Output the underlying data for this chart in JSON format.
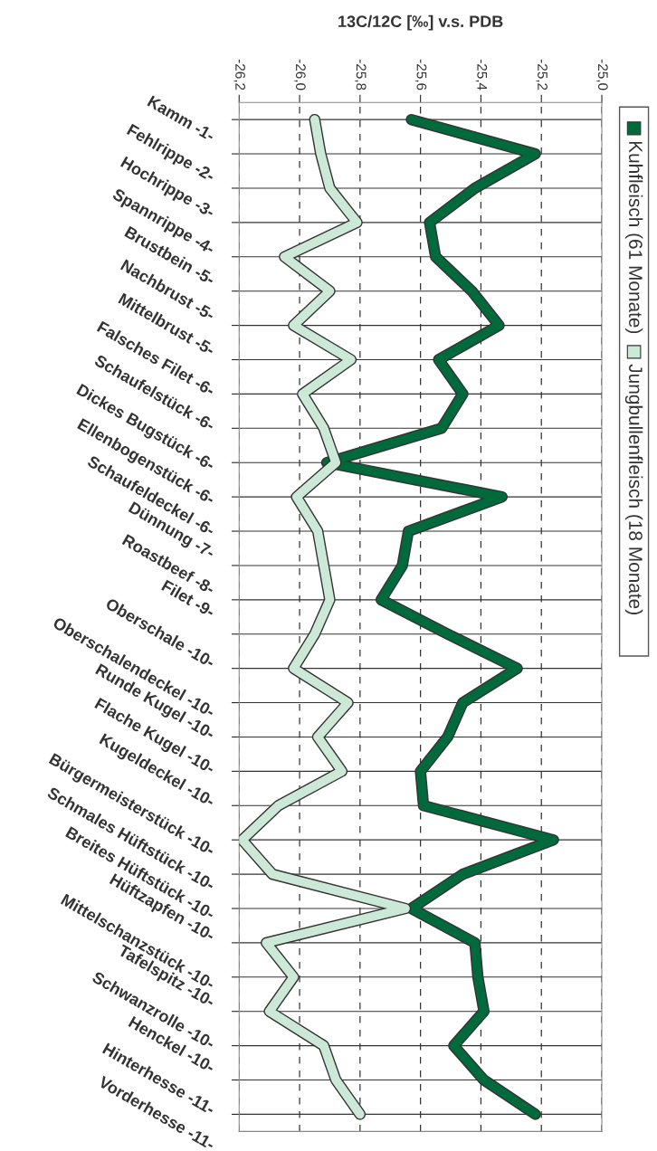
{
  "chart_data": {
    "type": "line",
    "title": "13C/12C [‰] v.s. PDB",
    "orientation": "horizontal",
    "categories": [
      "Kamm -1-",
      "Fehlrippe -2-",
      "Hochrippe -3-",
      "Spannrippe -4-",
      "Brustbein -5-",
      "Nachbrust -5-",
      "Mittelbrust -5-",
      "Falsches Filet -6-",
      "Schaufelstück -6-",
      "Dickes Bugstück -6-",
      "Ellenbogenstück -6-",
      "Schaufeldeckel -6-",
      "Dünnung -7-",
      "Roastbeef -8-",
      "Filet -9-",
      "Oberschale -10-",
      "Oberschalendeckel -10-",
      "Runde Kugel -10-",
      "Flache Kugel -10-",
      "Kugeldeckel -10-",
      "Bürgermeisterstück -10-",
      "Schmales Hüftstück -10-",
      "Breites Hüftstück -10-",
      "Hüftzapfen -10-",
      "Mittelschanzstück -10-",
      "Tafelspitz -10-",
      "Schwanzrolle -10-",
      "Henckel -10-",
      "Hinterhesse -11-",
      "Vorderhesse -11-"
    ],
    "series": [
      {
        "name": "Kuhfleisch (61 Monate)",
        "color": "#006a3c",
        "values": [
          -25.63,
          -25.22,
          -25.42,
          -25.57,
          -25.55,
          -25.43,
          -25.34,
          -25.54,
          -25.46,
          -25.53,
          -25.91,
          -25.33,
          -25.64,
          -25.66,
          -25.73,
          -25.51,
          -25.28,
          -25.46,
          -25.51,
          -25.6,
          -25.59,
          -25.16,
          -25.46,
          -25.63,
          -25.42,
          -25.41,
          -25.39,
          -25.49,
          -25.39,
          -25.22
        ]
      },
      {
        "name": "Jungbullenfleisch (18 Monate)",
        "color": "#cce8d6",
        "values": [
          -25.95,
          -25.93,
          -25.9,
          -25.81,
          -26.05,
          -25.9,
          -26.02,
          -25.83,
          -25.99,
          -25.92,
          -25.88,
          -26.01,
          -25.94,
          -25.92,
          -25.9,
          -25.95,
          -26.02,
          -25.84,
          -25.94,
          -25.86,
          -26.07,
          -26.19,
          -26.09,
          -25.65,
          -26.11,
          -26.02,
          -26.1,
          -25.92,
          -25.88,
          -25.8
        ]
      }
    ],
    "xlim": [
      -26.2,
      -25.0
    ],
    "xticks": [
      {
        "value": -26.2,
        "label": "-26,2"
      },
      {
        "value": -26.0,
        "label": "-26,0"
      },
      {
        "value": -25.8,
        "label": "-25,8"
      },
      {
        "value": -25.6,
        "label": "-25,6"
      },
      {
        "value": -25.4,
        "label": "-25,4"
      },
      {
        "value": -25.2,
        "label": "-25,2"
      },
      {
        "value": -25.0,
        "label": "-25,0"
      }
    ],
    "grid": true,
    "legend": "right",
    "marker": "none",
    "line_style": "solid"
  }
}
